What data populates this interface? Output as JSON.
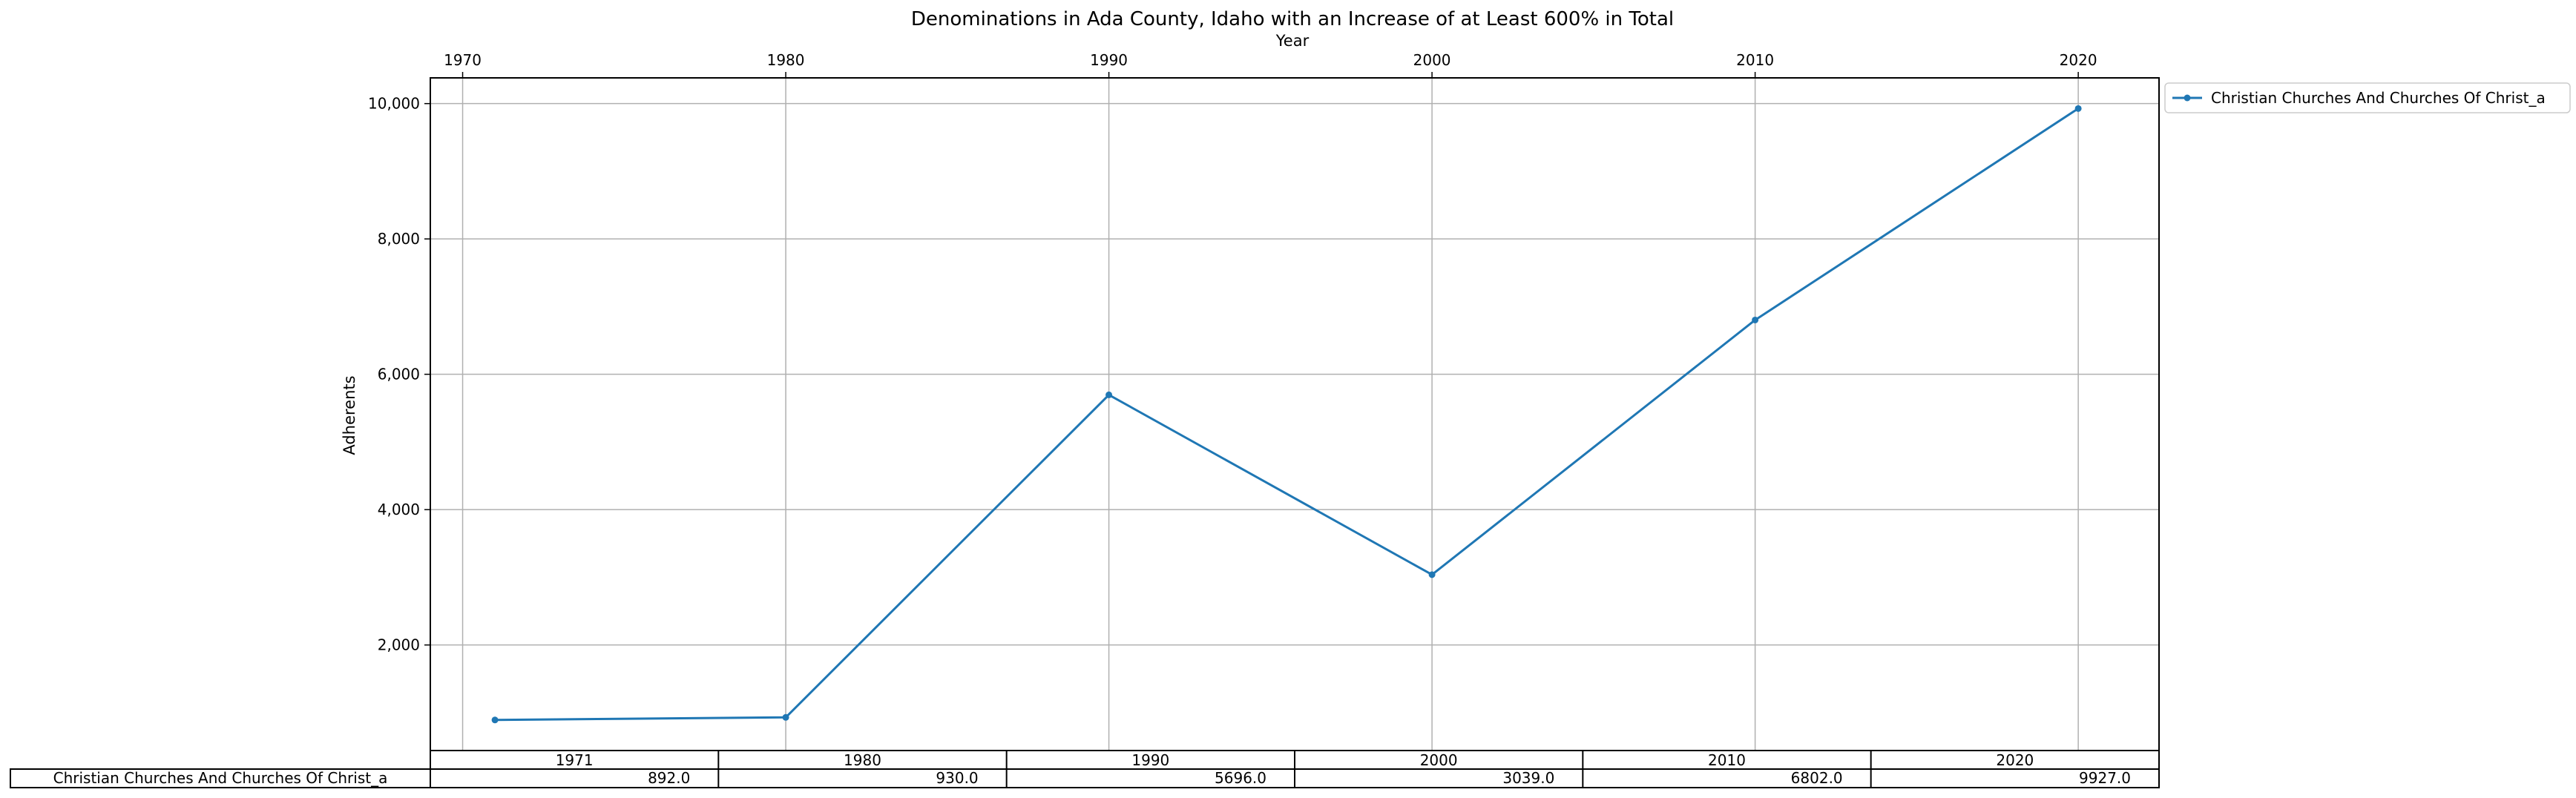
{
  "chart_data": {
    "type": "line",
    "title": "Denominations in Ada County, Idaho with an Increase of at Least 600% in Total",
    "xlabel": "Year",
    "ylabel": "Adherents",
    "x_ticks": [
      "1970",
      "1980",
      "1990",
      "2000",
      "2010",
      "2020"
    ],
    "y_ticks": [
      "2,000",
      "4,000",
      "6,000",
      "8,000",
      "10,000"
    ],
    "x_tick_values": [
      1970,
      1980,
      1990,
      2000,
      2010,
      2020
    ],
    "y_tick_values": [
      2000,
      4000,
      6000,
      8000,
      10000
    ],
    "xlim": [
      1969,
      2022.5
    ],
    "ylim": [
      440,
      10380
    ],
    "x_axis_position": "top",
    "grid": true,
    "legend_position": "outside-top-right",
    "series": [
      {
        "name": "Christian Churches And Churches Of Christ_a",
        "color": "#1f77b4",
        "marker": "dot",
        "x": [
          1971,
          1980,
          1990,
          2000,
          2010,
          2020
        ],
        "y": [
          892,
          930,
          5696,
          3039,
          6802,
          9927
        ]
      }
    ],
    "table": {
      "col_labels": [
        "1971",
        "1980",
        "1990",
        "2000",
        "2010",
        "2020"
      ],
      "row_label": "Christian Churches And Churches Of Christ_a",
      "cells": [
        "892.0",
        "930.0",
        "5696.0",
        "3039.0",
        "6802.0",
        "9927.0"
      ]
    }
  }
}
